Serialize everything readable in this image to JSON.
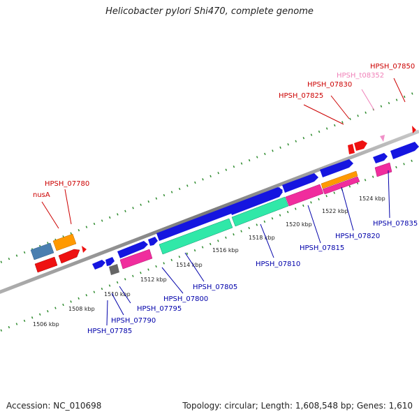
{
  "title": "Helicobacter pylori Shi470, complete genome",
  "footer": {
    "accession": "Accession: NC_010698",
    "summary": "Topology: circular; Length: 1,608,548 bp; Genes: 1,610"
  },
  "colors": {
    "backbone": "#909090",
    "tick_dots": "#2e8b2e",
    "blue_cds": "#1515e0",
    "red_cds": "#ee1111",
    "orange_cds": "#ff9900",
    "steelblue_cds": "#4a7fb0",
    "magenta_cds": "#f02d9d",
    "green_cds": "#30e8a8",
    "gray_cds": "#666666",
    "pink_trna": "#f090c8",
    "label_red": "#cc0000",
    "label_blue": "#0000aa",
    "label_pink": "#f080b8"
  },
  "scale_labels": [
    "1506 kbp",
    "1508 kbp",
    "1510 kbp",
    "1512 kbp",
    "1514 kbp",
    "1516 kbp",
    "1518 kbp",
    "1520 kbp",
    "1522 kbp",
    "1524 kbp"
  ],
  "upper_labels": [
    {
      "name": "HPSH_07850",
      "type": "red"
    },
    {
      "name": "HPSH_t08352",
      "type": "pink"
    },
    {
      "name": "HPSH_07830",
      "type": "red"
    },
    {
      "name": "HPSH_07825",
      "type": "red"
    },
    {
      "name": "HPSH_07780",
      "type": "red"
    },
    {
      "name": "nusA",
      "type": "red"
    }
  ],
  "lower_labels": [
    {
      "name": "HPSH_07835"
    },
    {
      "name": "HPSH_07820"
    },
    {
      "name": "HPSH_07815"
    },
    {
      "name": "HPSH_07810"
    },
    {
      "name": "HPSH_07805"
    },
    {
      "name": "HPSH_07800"
    },
    {
      "name": "HPSH_07795"
    },
    {
      "name": "HPSH_07790"
    },
    {
      "name": "HPSH_07785"
    }
  ]
}
